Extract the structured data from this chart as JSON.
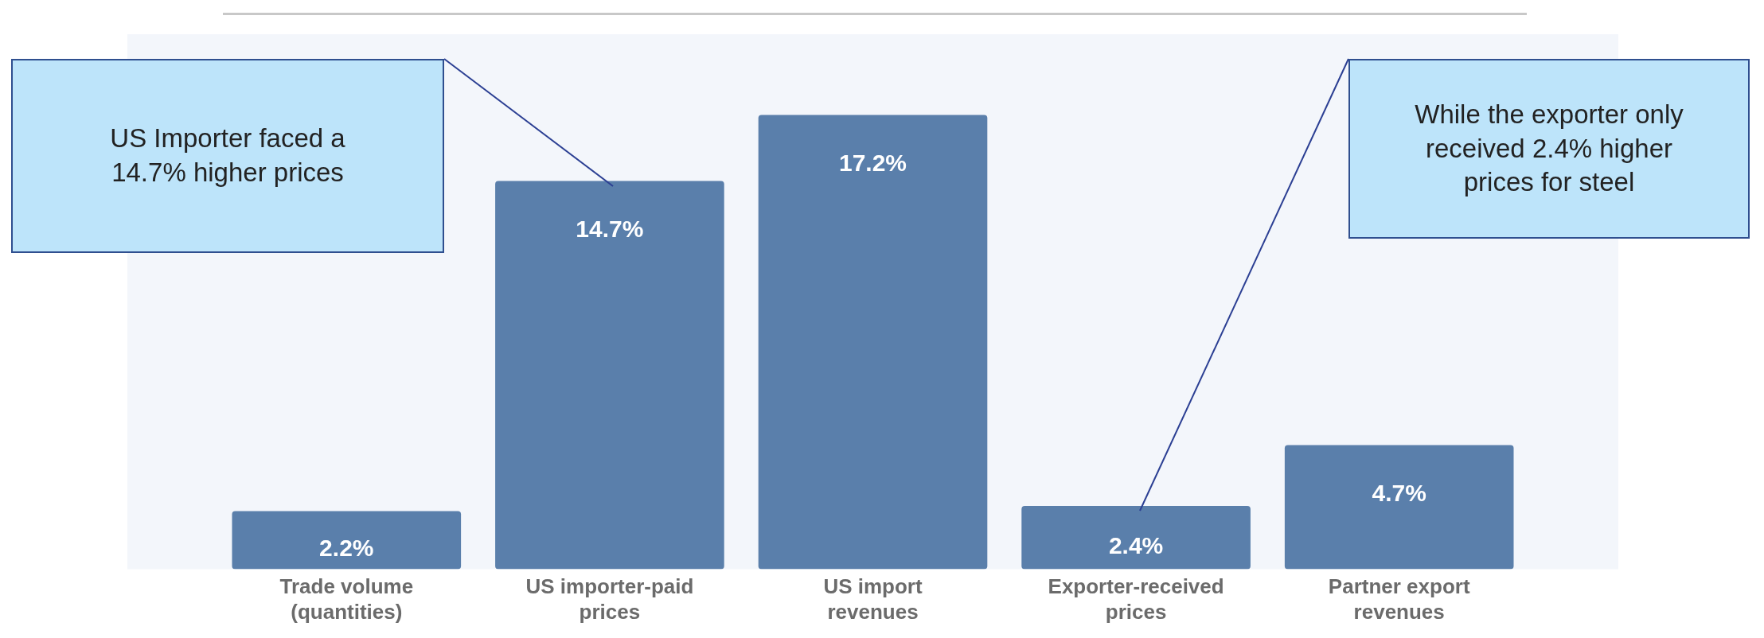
{
  "chart_data": {
    "type": "bar",
    "categories": [
      "Trade volume (quantities)",
      "US importer-paid prices",
      "US import revenues",
      "Exporter-received prices",
      "Partner export revenues"
    ],
    "values": [
      2.2,
      14.7,
      17.2,
      2.4,
      4.7
    ],
    "value_labels": [
      "2.2%",
      "14.7%",
      "17.2%",
      "2.4%",
      "4.7%"
    ],
    "color": "#5a7fab",
    "tick_labels": "x",
    "grid": false,
    "legend": false,
    "annotations": [
      "US Importer faced a 14.7% higher prices",
      "While the exporter only received 2.4% higher prices for steel"
    ]
  }
}
